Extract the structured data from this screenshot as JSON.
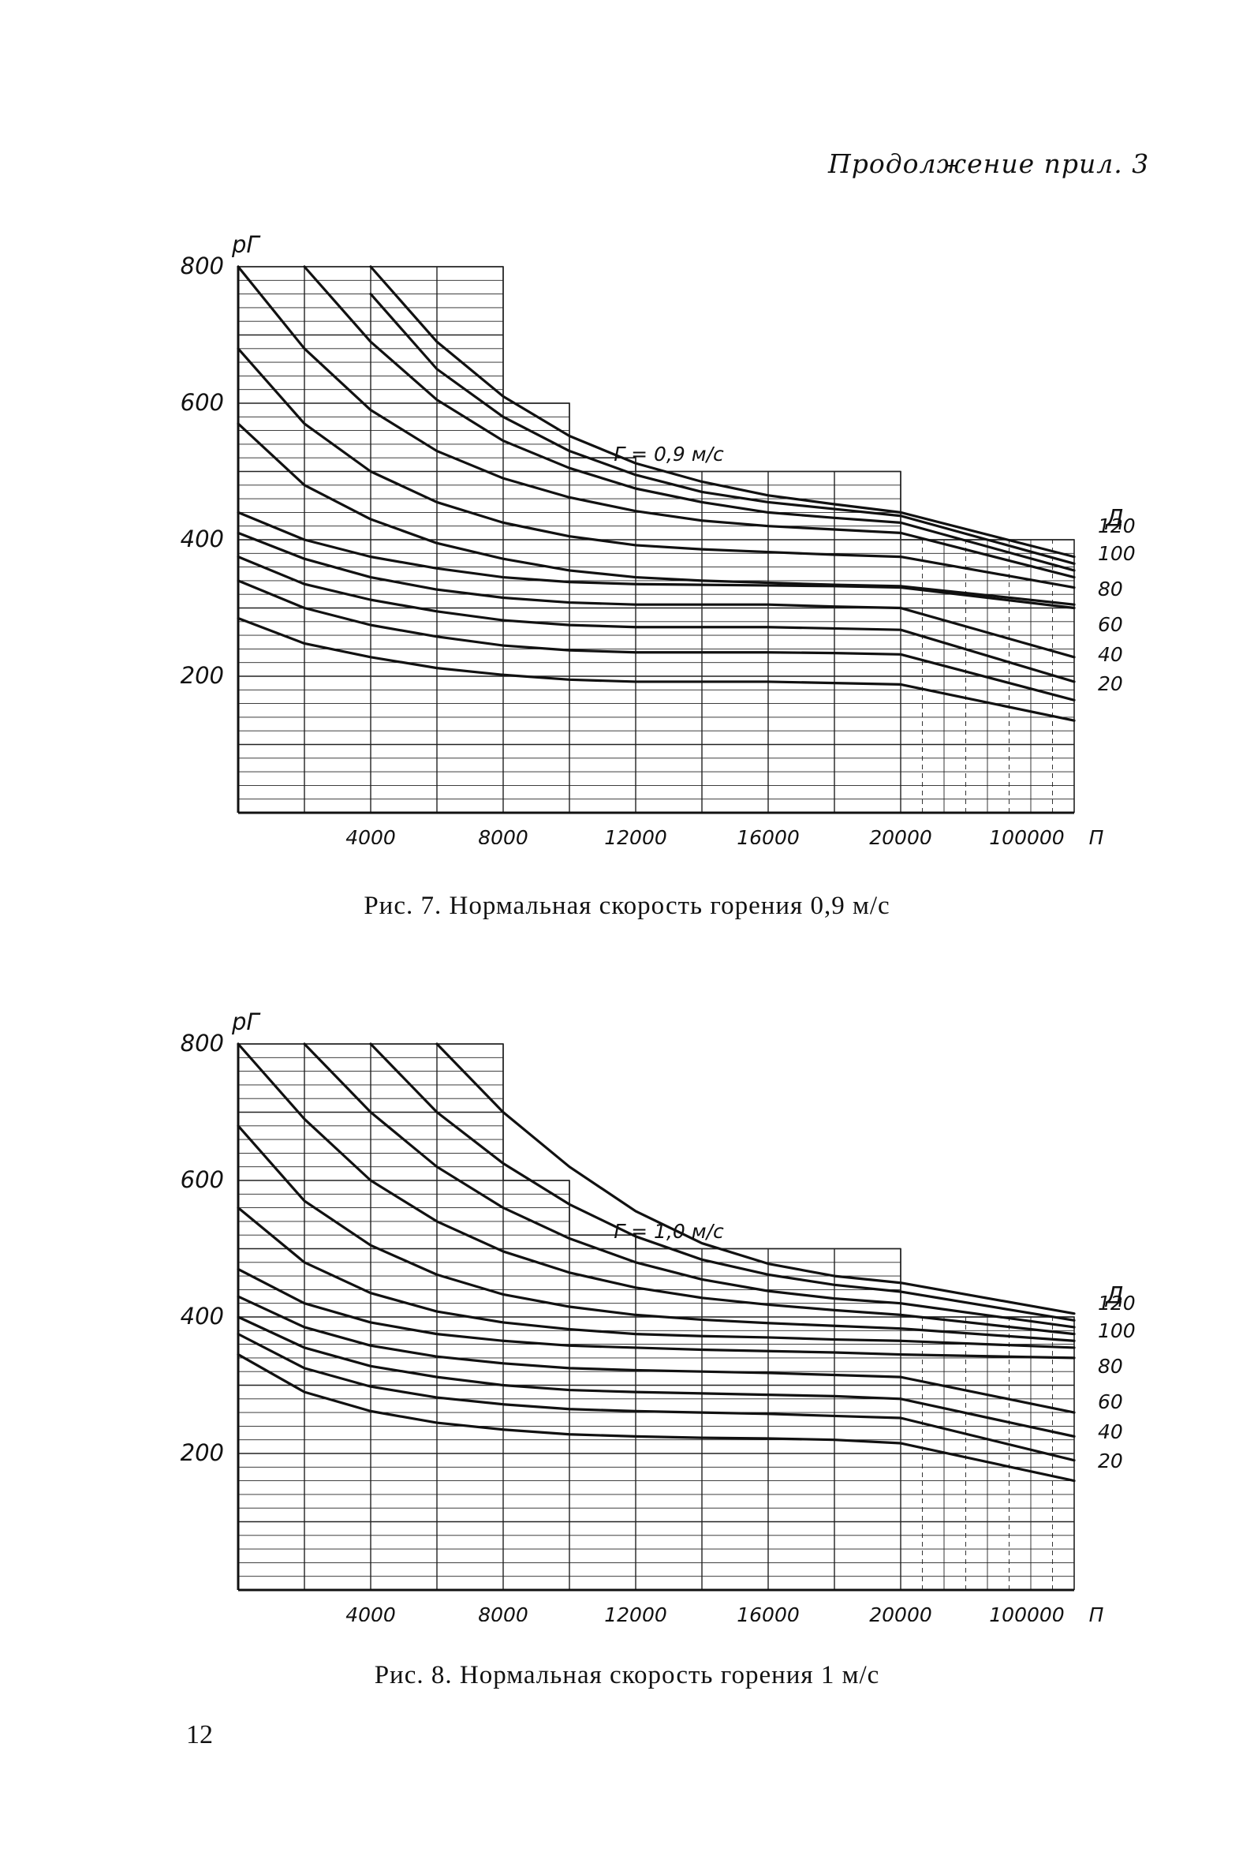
{
  "header": {
    "note": "Продолжение прил. 3"
  },
  "page_number": "12",
  "colors": {
    "ink": "#111111",
    "grid": "#222222",
    "paper": "#ffffff"
  },
  "chart_data": [
    {
      "type": "line",
      "caption": "Рис. 7. Нормальная скорость горения 0,9 м/с",
      "annotation": "Г = 0,9 м/с",
      "ylabel": "рГ",
      "xlabel": "П",
      "series_axis_label": "Д",
      "ylim": [
        0,
        800
      ],
      "yticks": [
        200,
        400,
        600,
        800
      ],
      "xtick_labels": [
        "4000",
        "8000",
        "12000",
        "16000",
        "20000",
        "100000"
      ],
      "grid": true,
      "x": [
        0,
        2000,
        4000,
        6000,
        8000,
        10000,
        12000,
        14000,
        16000,
        18000,
        20000,
        100000
      ],
      "series": [
        {
          "name": "20",
          "values": [
            285,
            248,
            228,
            212,
            202,
            195,
            192,
            192,
            192,
            190,
            188,
            135
          ]
        },
        {
          "name": "40",
          "values": [
            340,
            300,
            275,
            258,
            245,
            238,
            235,
            235,
            235,
            234,
            232,
            165
          ]
        },
        {
          "name": "60",
          "values": [
            375,
            335,
            312,
            295,
            282,
            275,
            272,
            272,
            272,
            270,
            268,
            192
          ]
        },
        {
          "name": "80",
          "values": [
            410,
            372,
            345,
            327,
            315,
            308,
            305,
            305,
            305,
            302,
            300,
            228
          ]
        },
        {
          "name": "100",
          "values": [
            440,
            400,
            375,
            358,
            345,
            338,
            335,
            334,
            333,
            332,
            330,
            300
          ]
        },
        {
          "name": "120",
          "values": [
            570,
            480,
            430,
            395,
            372,
            355,
            345,
            340,
            337,
            334,
            332,
            305
          ]
        },
        {
          "name": "",
          "values": [
            680,
            570,
            500,
            455,
            425,
            405,
            392,
            386,
            382,
            378,
            375,
            330
          ]
        },
        {
          "name": "",
          "values": [
            800,
            680,
            590,
            530,
            490,
            462,
            442,
            428,
            420,
            415,
            410,
            345
          ]
        },
        {
          "name": "",
          "values": [
            null,
            800,
            690,
            605,
            545,
            505,
            475,
            455,
            440,
            432,
            425,
            355
          ]
        },
        {
          "name": "",
          "values": [
            null,
            null,
            760,
            650,
            580,
            530,
            495,
            470,
            455,
            445,
            435,
            365
          ]
        },
        {
          "name": "",
          "values": [
            null,
            null,
            800,
            690,
            610,
            552,
            512,
            485,
            465,
            452,
            440,
            375
          ]
        }
      ]
    },
    {
      "type": "line",
      "caption": "Рис. 8. Нормальная скорость горения 1 м/с",
      "annotation": "Г = 1,0 м/с",
      "ylabel": "рГ",
      "xlabel": "П",
      "series_axis_label": "Д",
      "ylim": [
        0,
        800
      ],
      "yticks": [
        200,
        400,
        600,
        800
      ],
      "xtick_labels": [
        "4000",
        "8000",
        "12000",
        "16000",
        "20000",
        "100000"
      ],
      "grid": true,
      "x": [
        0,
        2000,
        4000,
        6000,
        8000,
        10000,
        12000,
        14000,
        16000,
        18000,
        20000,
        100000
      ],
      "series": [
        {
          "name": "20",
          "values": [
            345,
            290,
            262,
            245,
            235,
            228,
            225,
            223,
            222,
            220,
            215,
            160
          ]
        },
        {
          "name": "40",
          "values": [
            375,
            325,
            298,
            282,
            272,
            265,
            262,
            260,
            258,
            255,
            252,
            190
          ]
        },
        {
          "name": "60",
          "values": [
            400,
            355,
            328,
            312,
            300,
            293,
            290,
            288,
            286,
            284,
            280,
            225
          ]
        },
        {
          "name": "80",
          "values": [
            430,
            385,
            358,
            342,
            332,
            325,
            322,
            320,
            318,
            315,
            312,
            260
          ]
        },
        {
          "name": "100",
          "values": [
            470,
            420,
            392,
            375,
            365,
            358,
            355,
            352,
            350,
            348,
            345,
            340
          ]
        },
        {
          "name": "120",
          "values": [
            560,
            480,
            435,
            408,
            392,
            382,
            375,
            372,
            370,
            367,
            365,
            355
          ]
        },
        {
          "name": "",
          "values": [
            680,
            570,
            505,
            462,
            433,
            415,
            403,
            396,
            391,
            387,
            383,
            365
          ]
        },
        {
          "name": "",
          "values": [
            800,
            690,
            600,
            540,
            496,
            465,
            443,
            428,
            418,
            410,
            403,
            375
          ]
        },
        {
          "name": "",
          "values": [
            null,
            800,
            700,
            620,
            560,
            515,
            480,
            455,
            438,
            427,
            420,
            385
          ]
        },
        {
          "name": "",
          "values": [
            null,
            null,
            800,
            700,
            625,
            565,
            518,
            484,
            462,
            447,
            437,
            395
          ]
        },
        {
          "name": "",
          "values": [
            null,
            null,
            null,
            800,
            700,
            620,
            555,
            508,
            478,
            460,
            450,
            405
          ]
        }
      ]
    }
  ]
}
